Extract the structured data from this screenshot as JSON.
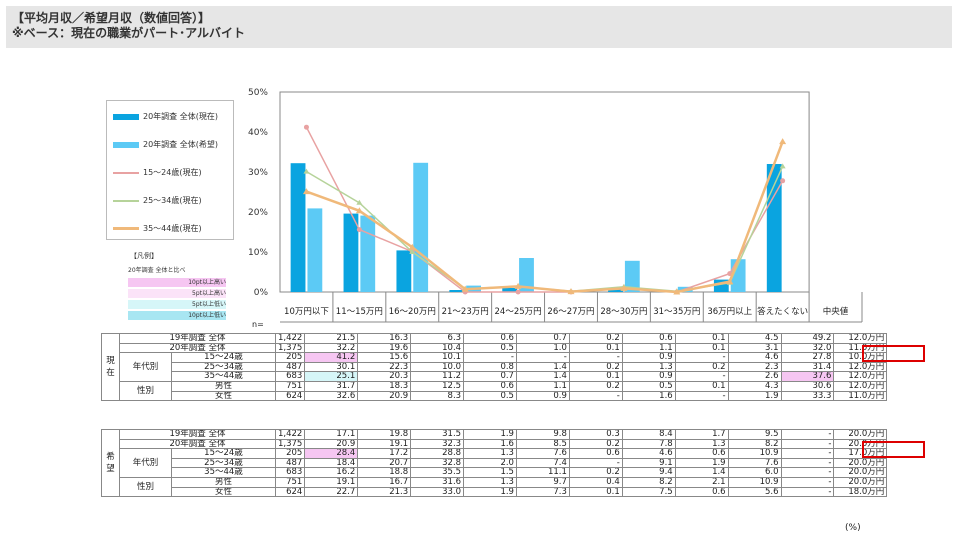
{
  "header": {
    "line1": "【平均月収／希望月収（数値回答）】",
    "line2": "※ベース：現在の職業がパート･アルバイト"
  },
  "legend": {
    "items": [
      {
        "label": "20年調査 全体(現在)",
        "type": "bar",
        "color": "#0aa4e0"
      },
      {
        "label": "20年調査 全体(希望)",
        "type": "bar",
        "color": "#5ccaf5"
      },
      {
        "label": "15～24歳(現在)",
        "type": "line",
        "color": "#e8a2a2"
      },
      {
        "label": "25～34歳(現在)",
        "type": "line",
        "color": "#b6d39a"
      },
      {
        "label": "35～44歳(現在)",
        "type": "line",
        "color": "#f0b97a"
      }
    ],
    "hanrei_title": "【凡例】",
    "hanrei_sub": "20年調査 全体と比べ",
    "hanrei_items": [
      {
        "label": "10pt以上高い",
        "color": "#f6c6f2"
      },
      {
        "label": "5pt以上高い",
        "color": "#fbe3f8"
      },
      {
        "label": "5pt以上低い",
        "color": "#d6f6f8"
      },
      {
        "label": "10pt以上低い",
        "color": "#a8e6f2"
      }
    ]
  },
  "chart_data": {
    "type": "bar",
    "categories": [
      "10万円以下",
      "11～15万円",
      "16～20万円",
      "21～23万円",
      "24～25万円",
      "26～27万円",
      "28～30万円",
      "31～35万円",
      "36万円以上",
      "答えたくない"
    ],
    "ylim": [
      0,
      50
    ],
    "yticks": [
      "0%",
      "10%",
      "20%",
      "30%",
      "40%",
      "50%"
    ],
    "series": [
      {
        "name": "20年調査 全体(現在)",
        "kind": "bar",
        "color": "#0aa4e0",
        "values": [
          32.2,
          19.6,
          10.4,
          0.5,
          1.0,
          0.1,
          1.1,
          0.1,
          3.1,
          32.0
        ]
      },
      {
        "name": "20年調査 全体(希望)",
        "kind": "bar",
        "color": "#5ccaf5",
        "values": [
          20.9,
          19.1,
          32.3,
          1.6,
          8.5,
          0.2,
          7.8,
          1.3,
          8.2,
          0
        ]
      },
      {
        "name": "15～24歳(現在)",
        "kind": "line",
        "color": "#e8a2a2",
        "values": [
          41.2,
          15.6,
          10.1,
          0,
          0,
          0,
          0.9,
          0,
          4.6,
          27.8
        ]
      },
      {
        "name": "25～34歳(現在)",
        "kind": "line",
        "color": "#b6d39a",
        "values": [
          30.1,
          22.3,
          10.0,
          0.8,
          1.4,
          0.2,
          1.3,
          0.2,
          2.3,
          31.4
        ]
      },
      {
        "name": "35～44歳(現在)",
        "kind": "line",
        "color": "#f0b97a",
        "values": [
          25.1,
          20.3,
          11.2,
          0.7,
          1.4,
          0.1,
          0.9,
          0,
          2.6,
          37.6
        ]
      }
    ]
  },
  "table": {
    "n_label": "n=",
    "last_col_header": "中央値",
    "genzai": {
      "section_label": "現在",
      "rows": [
        {
          "g1": "19年調査 全体",
          "g2": "",
          "n": "1,422",
          "vals": [
            "21.5",
            "16.3",
            "6.3",
            "0.6",
            "0.7",
            "0.2",
            "0.6",
            "0.1",
            "4.5",
            "49.2"
          ],
          "median": "12.0万円"
        },
        {
          "g1": "20年調査 全体",
          "g2": "",
          "n": "1,375",
          "vals": [
            "32.2",
            "19.6",
            "10.4",
            "0.5",
            "1.0",
            "0.1",
            "1.1",
            "0.1",
            "3.1",
            "32.0"
          ],
          "median": "11.0万円"
        },
        {
          "g1": "年代別",
          "g2": "15～24歳",
          "n": "205",
          "vals": [
            "41.2",
            "15.6",
            "10.1",
            "-",
            "-",
            "-",
            "0.9",
            "-",
            "4.6",
            "27.8"
          ],
          "median": "10.0万円"
        },
        {
          "g1": "",
          "g2": "25～34歳",
          "n": "487",
          "vals": [
            "30.1",
            "22.3",
            "10.0",
            "0.8",
            "1.4",
            "0.2",
            "1.3",
            "0.2",
            "2.3",
            "31.4"
          ],
          "median": "12.0万円"
        },
        {
          "g1": "",
          "g2": "35～44歳",
          "n": "683",
          "vals": [
            "25.1",
            "20.3",
            "11.2",
            "0.7",
            "1.4",
            "0.1",
            "0.9",
            "-",
            "2.6",
            "37.6"
          ],
          "median": "12.0万円"
        },
        {
          "g1": "性別",
          "g2": "男性",
          "n": "751",
          "vals": [
            "31.7",
            "18.3",
            "12.5",
            "0.6",
            "1.1",
            "0.2",
            "0.5",
            "0.1",
            "4.3",
            "30.6"
          ],
          "median": "12.0万円"
        },
        {
          "g1": "",
          "g2": "女性",
          "n": "624",
          "vals": [
            "32.6",
            "20.9",
            "8.3",
            "0.5",
            "0.9",
            "-",
            "1.6",
            "-",
            "1.9",
            "33.3"
          ],
          "median": "11.0万円"
        }
      ]
    },
    "kibou": {
      "section_label": "希望",
      "rows": [
        {
          "g1": "19年調査 全体",
          "g2": "",
          "n": "1,422",
          "vals": [
            "17.1",
            "19.8",
            "31.5",
            "1.9",
            "9.8",
            "0.3",
            "8.4",
            "1.7",
            "9.5",
            "-"
          ],
          "median": "20.0万円"
        },
        {
          "g1": "20年調査 全体",
          "g2": "",
          "n": "1,375",
          "vals": [
            "20.9",
            "19.1",
            "32.3",
            "1.6",
            "8.5",
            "0.2",
            "7.8",
            "1.3",
            "8.2",
            "-"
          ],
          "median": "20.0万円"
        },
        {
          "g1": "年代別",
          "g2": "15～24歳",
          "n": "205",
          "vals": [
            "28.4",
            "17.2",
            "28.8",
            "1.3",
            "7.6",
            "0.6",
            "4.6",
            "0.6",
            "10.9",
            "-"
          ],
          "median": "17.0万円"
        },
        {
          "g1": "",
          "g2": "25～34歳",
          "n": "487",
          "vals": [
            "18.4",
            "20.7",
            "32.8",
            "2.0",
            "7.4",
            "-",
            "9.1",
            "1.9",
            "7.6",
            "-"
          ],
          "median": "20.0万円"
        },
        {
          "g1": "",
          "g2": "35～44歳",
          "n": "683",
          "vals": [
            "16.2",
            "18.8",
            "35.5",
            "1.5",
            "11.1",
            "0.2",
            "9.4",
            "1.4",
            "6.0",
            "-"
          ],
          "median": "20.0万円"
        },
        {
          "g1": "性別",
          "g2": "男性",
          "n": "751",
          "vals": [
            "19.1",
            "16.7",
            "31.6",
            "1.3",
            "9.7",
            "0.4",
            "8.2",
            "2.1",
            "10.9",
            "-"
          ],
          "median": "20.0万円"
        },
        {
          "g1": "",
          "g2": "女性",
          "n": "624",
          "vals": [
            "22.7",
            "21.3",
            "33.0",
            "1.9",
            "7.3",
            "0.1",
            "7.5",
            "0.6",
            "5.6",
            "-"
          ],
          "median": "18.0万円"
        }
      ]
    },
    "unit": "(%)"
  }
}
